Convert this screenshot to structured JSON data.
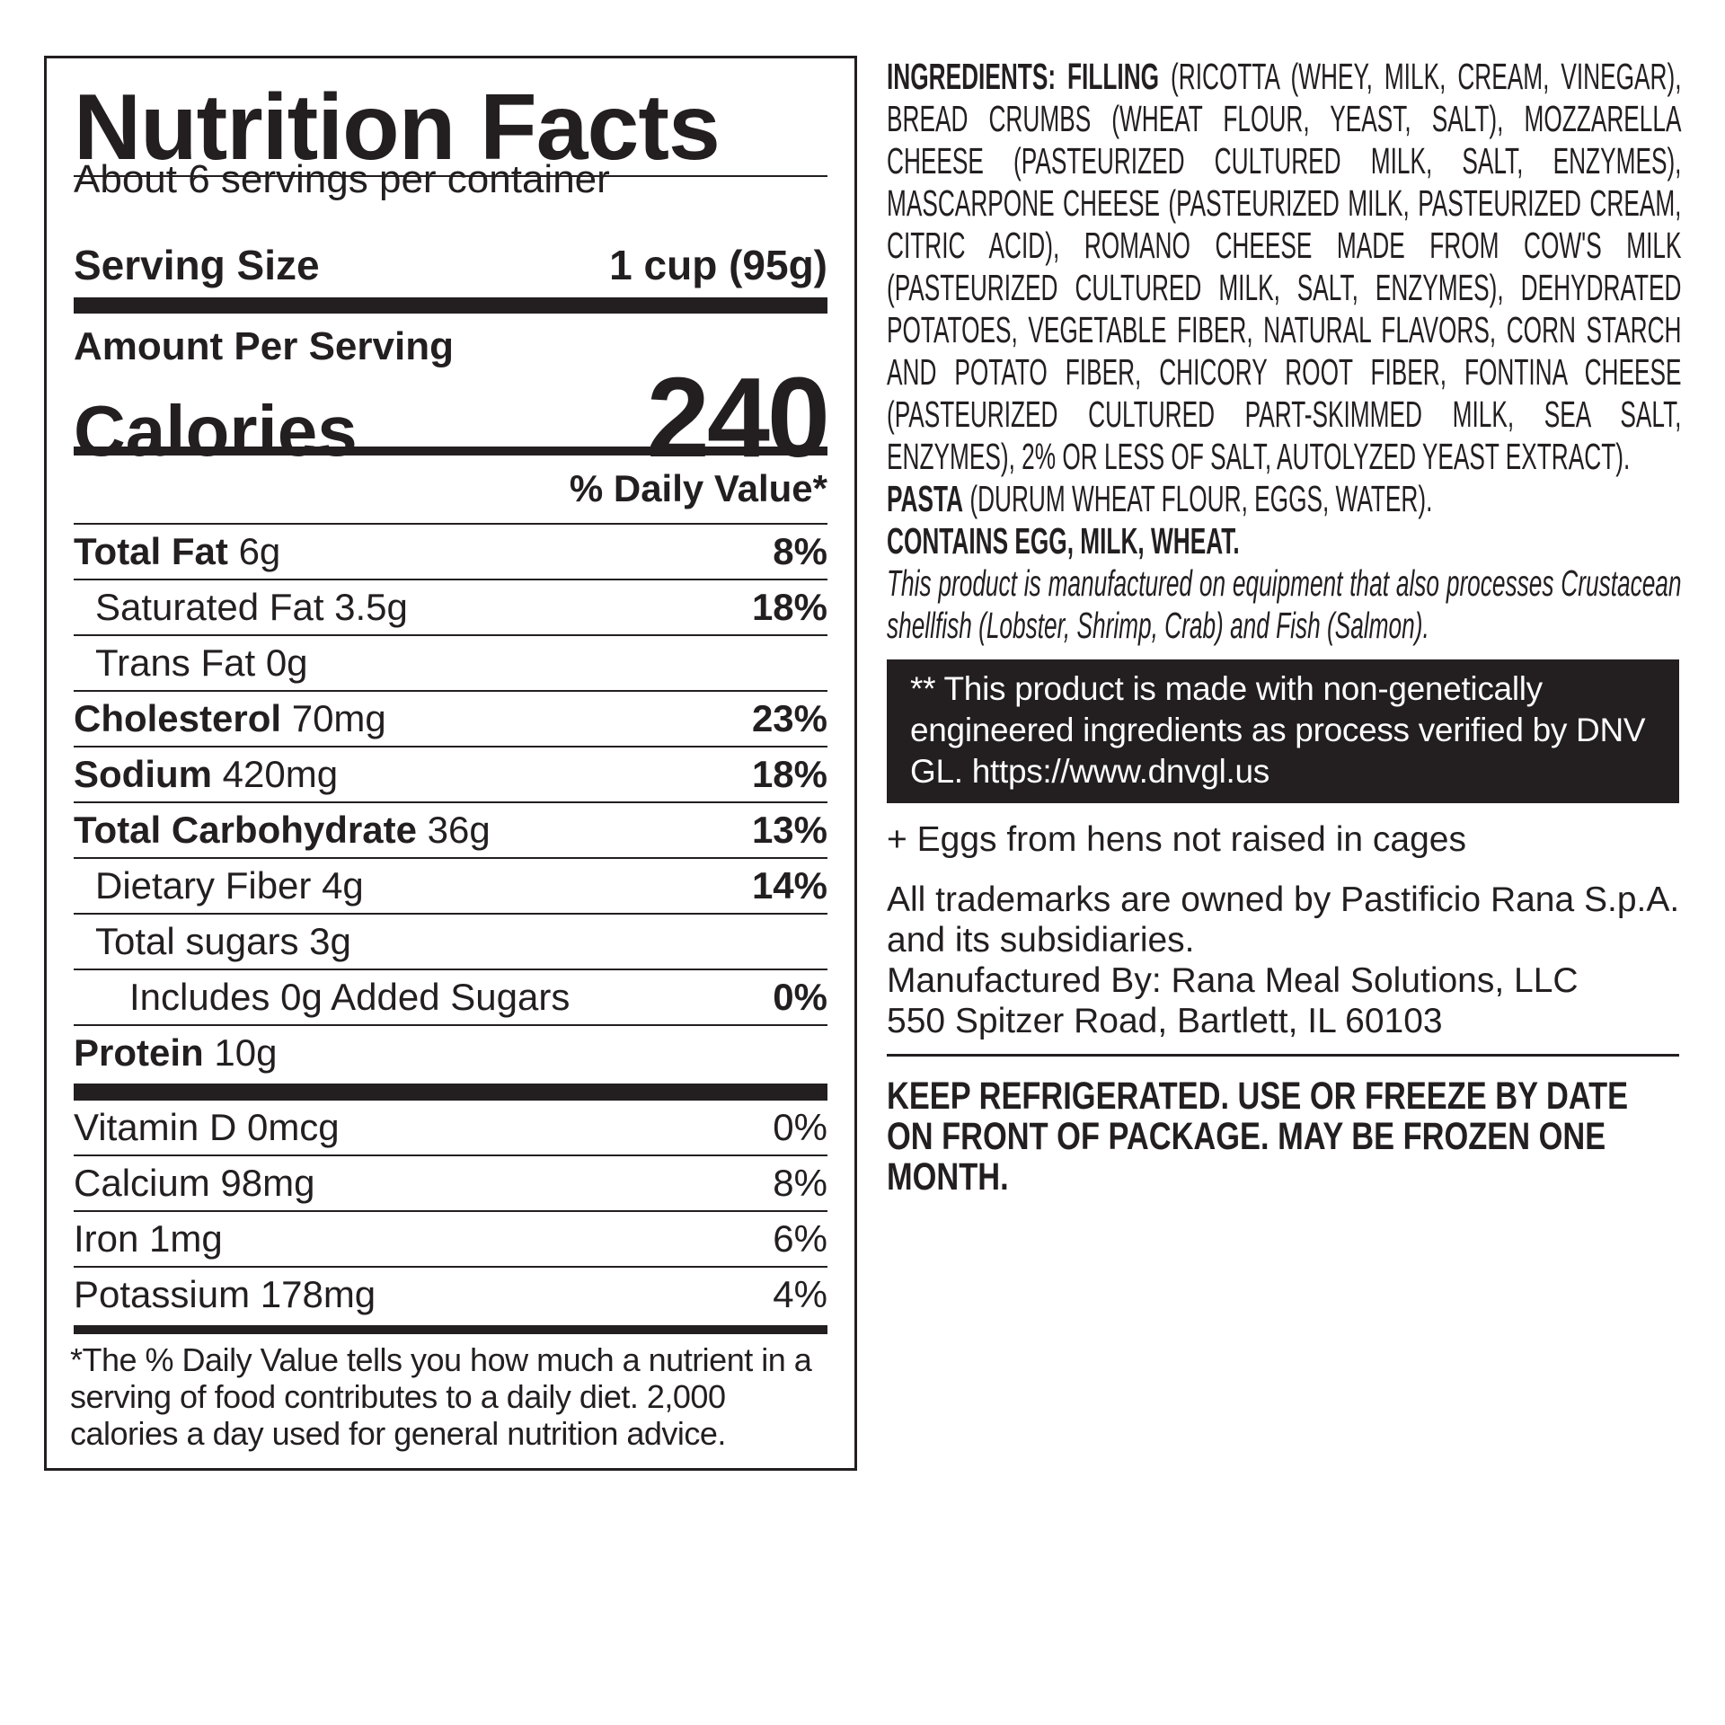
{
  "nutrition": {
    "title": "Nutrition Facts",
    "servings_per_container": "About 6 servings per container",
    "serving_size_label": "Serving Size",
    "serving_size_value": "1 cup (95g)",
    "amount_per_serving": "Amount Per Serving",
    "calories_label": "Calories",
    "calories_value": "240",
    "daily_value_header": "% Daily Value*",
    "nutrients": [
      {
        "name": "Total Fat",
        "amount": "6g",
        "dv": "8%"
      },
      {
        "name": "Saturated Fat",
        "amount": "3.5g",
        "dv": "18%"
      },
      {
        "name": "Trans Fat",
        "amount": "0g",
        "dv": ""
      },
      {
        "name": "Cholesterol",
        "amount": "70mg",
        "dv": "23%"
      },
      {
        "name": "Sodium",
        "amount": "420mg",
        "dv": "18%"
      },
      {
        "name": "Total Carbohydrate",
        "amount": "36g",
        "dv": "13%"
      },
      {
        "name": "Dietary Fiber",
        "amount": "4g",
        "dv": "14%"
      },
      {
        "name": "Total sugars",
        "amount": "3g",
        "dv": ""
      },
      {
        "name": "Includes 0g Added Sugars",
        "amount": "",
        "dv": "0%"
      },
      {
        "name": "Protein",
        "amount": "10g",
        "dv": ""
      }
    ],
    "vitamins": [
      {
        "name": "Vitamin D 0mcg",
        "dv": "0%"
      },
      {
        "name": "Calcium 98mg",
        "dv": "8%"
      },
      {
        "name": "Iron 1mg",
        "dv": "6%"
      },
      {
        "name": "Potassium 178mg",
        "dv": "4%"
      }
    ],
    "footnote": "*The % Daily Value tells you how much a nutrient in a serving of food contributes to a daily diet. 2,000 calories a day used for general nutrition advice."
  },
  "ingredients": {
    "label": "INGREDIENTS: FILLING",
    "filling": "(RICOTTA (WHEY, MILK, CREAM, VINEGAR), BREAD CRUMBS (WHEAT FLOUR, YEAST, SALT), MOZZARELLA CHEESE (PASTEURIZED CULTURED MILK, SALT, ENZYMES), MASCARPONE CHEESE (PASTEURIZED MILK, PASTEURIZED CREAM, CITRIC ACID), ROMANO CHEESE MADE FROM COW'S MILK (PASTEURIZED CULTURED MILK, SALT, ENZYMES), DEHYDRATED POTATOES, VEGETABLE FIBER, NATURAL FLAVORS, CORN STARCH AND POTATO FIBER, CHICORY ROOT FIBER, FONTINA CHEESE (PASTEURIZED CULTURED PART-SKIMMED MILK, SEA SALT, ENZYMES), 2% OR LESS OF SALT, AUTOLYZED YEAST EXTRACT).",
    "pasta_label": "PASTA",
    "pasta": "(DURUM WHEAT FLOUR, EGGS, WATER).",
    "contains": "CONTAINS EGG, MILK, WHEAT.",
    "equipment_note": "This product is manufactured on equipment that also processes Crustacean shellfish (Lobster, Shrimp, Crab) and Fish (Salmon)."
  },
  "gmo_notice": "** This product is made with non-genetically engineered ingredients as process verified by DNV GL. https://www.dnvgl.us",
  "eggs_note": "+ Eggs from hens not raised in cages",
  "trademark": "All trademarks are owned by Pastificio Rana S.p.A. and its subsidiaries.",
  "manufacturer_line": "Manufactured By: Rana Meal Solutions, LLC",
  "address": "550 Spitzer Road, Bartlett, IL 60103",
  "storage": "KEEP REFRIGERATED. USE OR FREEZE BY DATE ON FRONT OF PACKAGE. MAY BE FROZEN ONE MONTH."
}
